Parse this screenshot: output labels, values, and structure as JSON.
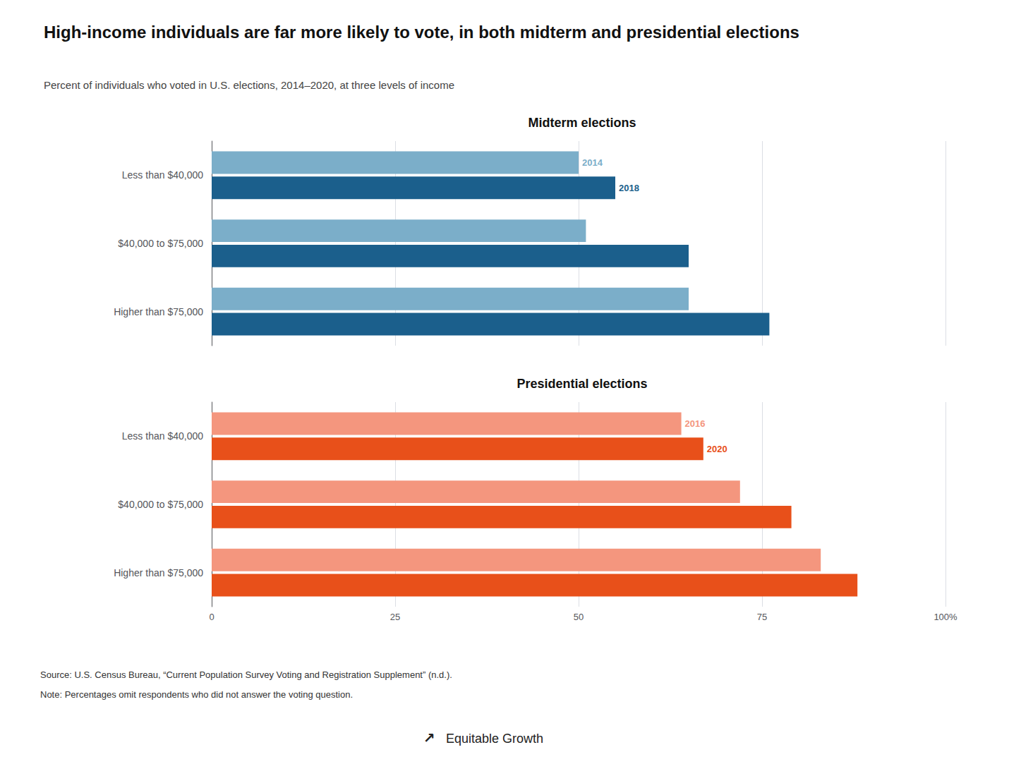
{
  "title": "High-income individuals are far more likely to vote, in both midterm and presidential elections",
  "subtitle": "Percent of individuals who voted in U.S. elections, 2014–2020, at three levels of income",
  "annotations": [
    "Source: U.S. Census Bureau, “Current Population Survey Voting and Registration Supplement” (n.d.).",
    "Note: Percentages omit respondents who did not answer the voting question.",
    "↗",
    "Equitable Growth"
  ],
  "chart_data": [
    {
      "type": "bar",
      "title": "Midterm elections",
      "orientation": "horizontal",
      "categories": [
        "Less than $40,000",
        "$40,000 to $75,000",
        "Higher than $75,000"
      ],
      "series": [
        {
          "name": "2014",
          "color": "#7baec9",
          "values": [
            50,
            51,
            65
          ]
        },
        {
          "name": "2018",
          "color": "#1b5f8c",
          "values": [
            55,
            65,
            76
          ]
        }
      ],
      "xlim": [
        0,
        100
      ],
      "xticks": [
        0,
        25,
        50,
        75,
        100
      ],
      "grid": true,
      "tick_labels": "y"
    },
    {
      "type": "bar",
      "title": "Presidential elections",
      "orientation": "horizontal",
      "categories": [
        "Less than $40,000",
        "$40,000 to $75,000",
        "Higher than $75,000"
      ],
      "series": [
        {
          "name": "2016",
          "color": "#f4967e",
          "values": [
            64,
            72,
            83
          ]
        },
        {
          "name": "2020",
          "color": "#e8501a",
          "values": [
            67,
            79,
            88
          ]
        }
      ],
      "xlim": [
        0,
        100
      ],
      "xticks": [
        0,
        25,
        50,
        75,
        {
          "value": 100,
          "label": "100%"
        }
      ],
      "grid": true
    }
  ]
}
